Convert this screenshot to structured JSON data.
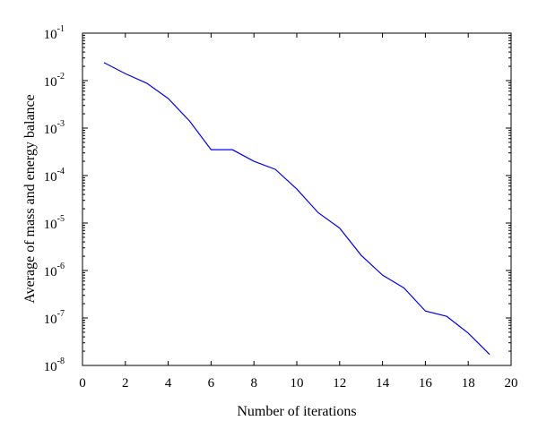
{
  "chart_data": {
    "type": "line",
    "title": "",
    "xlabel": "Number of iterations",
    "ylabel": "Average of mass and energy balance",
    "xlim": [
      0,
      20
    ],
    "ylim": [
      1e-08,
      0.1
    ],
    "yscale": "log",
    "grid": false,
    "xticks": [
      "0",
      "2",
      "4",
      "6",
      "8",
      "10",
      "12",
      "14",
      "16",
      "18",
      "20"
    ],
    "yticks": [
      {
        "base": "10",
        "exp": "-8"
      },
      {
        "base": "10",
        "exp": "-7"
      },
      {
        "base": "10",
        "exp": "-6"
      },
      {
        "base": "10",
        "exp": "-5"
      },
      {
        "base": "10",
        "exp": "-4"
      },
      {
        "base": "10",
        "exp": "-3"
      },
      {
        "base": "10",
        "exp": "-2"
      },
      {
        "base": "10",
        "exp": "-1"
      }
    ],
    "series": [
      {
        "color": "#0000ff",
        "x": [
          1,
          2,
          3,
          4,
          5,
          6,
          7,
          8,
          9,
          10,
          11,
          12,
          13,
          14,
          15,
          16,
          17,
          18,
          19
        ],
        "y": [
          0.024,
          0.014,
          0.0088,
          0.0042,
          0.0014,
          0.00035,
          0.00035,
          0.0002,
          0.000135,
          5.2e-05,
          1.65e-05,
          7.8e-06,
          2.1e-06,
          8e-07,
          4.3e-07,
          1.4e-07,
          1.08e-07,
          4.8e-08,
          1.7e-08
        ]
      }
    ]
  }
}
